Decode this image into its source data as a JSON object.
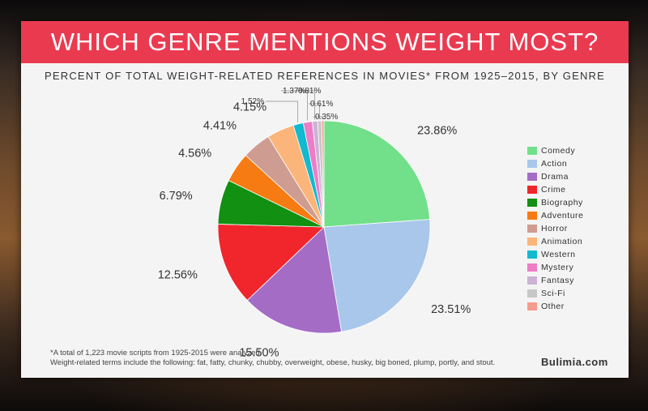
{
  "page": {
    "title": "WHICH GENRE MENTIONS WEIGHT MOST?",
    "subtitle": "PERCENT OF TOTAL WEIGHT-RELATED REFERENCES IN MOVIES* FROM 1925–2015, BY GENRE",
    "footnote_1": "*A total of 1,223 movie scripts from 1925-2015 were analyzed.",
    "footnote_2": "Weight-related terms include the following: fat, fatty, chunky, chubby, overweight, obese, husky, big boned, plump, portly, and stout.",
    "brand": "Bulimia.com"
  },
  "colors": {
    "banner": "#ea3a50",
    "card": "#f4f4f4"
  },
  "chart_data": {
    "type": "pie",
    "title": "WHICH GENRE MENTIONS WEIGHT MOST?",
    "subtitle": "PERCENT OF TOTAL WEIGHT-RELATED REFERENCES IN MOVIES* FROM 1925–2015, BY GENRE",
    "legend_position": "right",
    "categories": [
      "Comedy",
      "Action",
      "Drama",
      "Crime",
      "Biography",
      "Adventure",
      "Horror",
      "Animation",
      "Western",
      "Mystery",
      "Fantasy",
      "Sci-Fi",
      "Other"
    ],
    "values": [
      23.86,
      23.51,
      15.5,
      12.56,
      6.79,
      4.56,
      4.41,
      4.15,
      1.52,
      1.37,
      0.81,
      0.61,
      0.35
    ],
    "labels": [
      "23.86%",
      "23.51%",
      "15.50%",
      "12.56%",
      "6.79%",
      "4.56%",
      "4.41%",
      "4.15%",
      "1.52%",
      "1.37%",
      "0.81%",
      "0.61%",
      "0.35%"
    ],
    "colors": [
      "#72e08a",
      "#a8c7ea",
      "#a56cc6",
      "#f0262c",
      "#129012",
      "#f67b12",
      "#cf9c92",
      "#fbb57a",
      "#12b9cf",
      "#ef7cc6",
      "#ccb2d5",
      "#c7c7c7",
      "#f59c8c"
    ]
  }
}
